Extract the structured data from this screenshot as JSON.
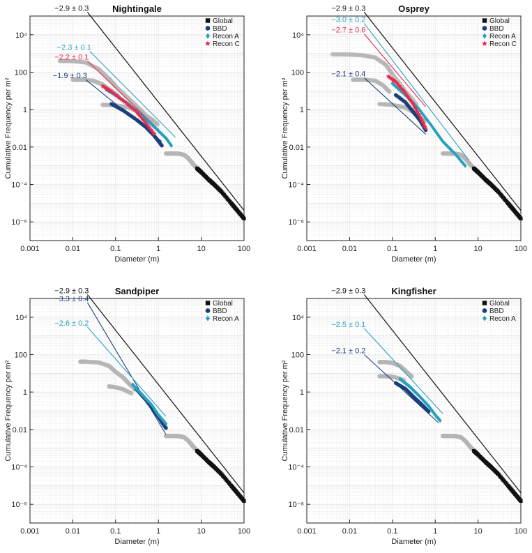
{
  "figure": {
    "xlabel": "Diameter (m)",
    "ylabel": "Cumulative Frequency per m²",
    "xticks": [
      "0.001",
      "0.01",
      "0.1",
      "1",
      "10",
      "100"
    ],
    "yticks": [
      "10⁻⁶",
      "10⁻⁴",
      "0.01",
      "1",
      "100",
      "10⁴"
    ]
  },
  "colors": {
    "Global": "#111111",
    "BBD": "#1a3f7a",
    "Recon A": "#2aa0bf",
    "Recon C": "#e8294d",
    "reference": "#b5b5b5"
  },
  "chart_data": [
    {
      "type": "scatter",
      "title": "Nightingale",
      "xlabel": "Diameter (m)",
      "ylabel": "Cumulative Frequency per m²",
      "xscale": "log",
      "yscale": "log",
      "xlim": [
        0.001,
        100
      ],
      "ylim": [
        1e-07,
        100000.0
      ],
      "legend": {
        "placement": "top-right",
        "entries": [
          "Global",
          "BBD",
          "Recon A",
          "Recon C"
        ]
      },
      "series": [
        {
          "name": "Global",
          "x": [
            8,
            10,
            15,
            20,
            30,
            50,
            70,
            100
          ],
          "y": [
            0.00072,
            0.00045,
            0.00018,
            0.0001,
            4e-05,
            1e-05,
            4e-06,
            1.5e-06
          ]
        },
        {
          "name": "BBD",
          "x": [
            0.08,
            0.15,
            0.3,
            0.5,
            0.8,
            1.2
          ],
          "y": [
            2,
            0.9,
            0.3,
            0.12,
            0.04,
            0.012
          ]
        },
        {
          "name": "Recon A",
          "x": [
            0.06,
            0.1,
            0.2,
            0.4,
            0.8,
            1.5,
            2
          ],
          "y": [
            12,
            6,
            2,
            0.5,
            0.12,
            0.03,
            0.012
          ]
        },
        {
          "name": "Recon C",
          "x": [
            0.05,
            0.08,
            0.15,
            0.3,
            0.5,
            0.8
          ],
          "y": [
            18,
            9,
            3,
            0.8,
            0.2,
            0.05
          ]
        }
      ],
      "reference_points": [
        {
          "x": [
            0.005,
            0.01,
            0.02,
            0.04,
            0.07,
            0.1,
            0.2,
            0.4,
            0.7
          ],
          "y": [
            400,
            390,
            330,
            150,
            45,
            18,
            4,
            0.9,
            0.2
          ]
        },
        {
          "x": [
            0.01,
            0.015,
            0.03,
            0.05,
            0.08,
            0.12
          ],
          "y": [
            40,
            40,
            35,
            22,
            10,
            5
          ]
        },
        {
          "x": [
            0.05,
            0.1,
            0.2,
            0.4,
            0.7,
            1.0
          ],
          "y": [
            1.8,
            1.7,
            1.3,
            0.7,
            0.3,
            0.15
          ]
        },
        {
          "x": [
            1.5,
            2,
            3,
            4,
            5,
            6,
            7,
            8
          ],
          "y": [
            0.0045,
            0.0045,
            0.0044,
            0.0038,
            0.0025,
            0.0015,
            0.001,
            0.00075
          ]
        }
      ],
      "fits": [
        {
          "name": "Global",
          "label": "−2.9 ± 0.3",
          "slope": -2.9,
          "x": [
            0.022,
            100
          ],
          "y": [
            160000,
            4.1e-06
          ]
        },
        {
          "name": "Recon A",
          "label": "−2.3 ± 0.1",
          "slope": -2.3,
          "x": [
            0.025,
            2.5
          ],
          "y": [
            1300,
            0.033
          ]
        },
        {
          "name": "Recon C",
          "label": "−2.2 ± 0.1",
          "slope": -2.2,
          "x": [
            0.022,
            1.0
          ],
          "y": [
            400,
            0.09
          ]
        },
        {
          "name": "BBD",
          "label": "−1.9 ± 0.3",
          "slope": -1.9,
          "x": [
            0.02,
            1.2
          ],
          "y": [
            40,
            0.02
          ]
        }
      ]
    },
    {
      "type": "scatter",
      "title": "Osprey",
      "xlabel": "Diameter (m)",
      "ylabel": "Cumulative Frequency per m²",
      "xscale": "log",
      "yscale": "log",
      "xlim": [
        0.001,
        100
      ],
      "ylim": [
        1e-07,
        100000.0
      ],
      "legend": {
        "placement": "top-right",
        "entries": [
          "Global",
          "BBD",
          "Recon A",
          "Recon C"
        ]
      },
      "series": [
        {
          "name": "Global",
          "x": [
            8,
            10,
            15,
            20,
            30,
            50,
            70,
            100
          ],
          "y": [
            0.00072,
            0.00045,
            0.00018,
            0.0001,
            4e-05,
            1e-05,
            4e-06,
            1.5e-06
          ]
        },
        {
          "name": "BBD",
          "x": [
            0.12,
            0.2,
            0.3,
            0.45,
            0.6
          ],
          "y": [
            6,
            2.5,
            0.8,
            0.25,
            0.08
          ]
        },
        {
          "name": "Recon A",
          "x": [
            0.1,
            0.2,
            0.4,
            0.8,
            1.5,
            3,
            5
          ],
          "y": [
            25,
            6,
            1.2,
            0.15,
            0.02,
            0.004,
            0.001
          ]
        },
        {
          "name": "Recon C",
          "x": [
            0.08,
            0.12,
            0.2,
            0.3,
            0.45,
            0.6
          ],
          "y": [
            60,
            30,
            8,
            2,
            0.4,
            0.1
          ]
        }
      ],
      "reference_points": [
        {
          "x": [
            0.004,
            0.01,
            0.02,
            0.04,
            0.07,
            0.1,
            0.2,
            0.4
          ],
          "y": [
            900,
            880,
            800,
            600,
            250,
            80,
            10,
            1.5
          ]
        },
        {
          "x": [
            0.012,
            0.02,
            0.04,
            0.06,
            0.09
          ],
          "y": [
            40,
            40,
            35,
            20,
            8
          ]
        },
        {
          "x": [
            0.05,
            0.1,
            0.2,
            0.35,
            0.6
          ],
          "y": [
            2,
            1.8,
            1.3,
            0.6,
            0.2
          ]
        },
        {
          "x": [
            1.5,
            2,
            3,
            4,
            5,
            6,
            7,
            8
          ],
          "y": [
            0.0045,
            0.0045,
            0.0044,
            0.0038,
            0.0025,
            0.0015,
            0.001,
            0.00075
          ]
        }
      ],
      "fits": [
        {
          "name": "Global",
          "label": "−2.9 ± 0.3",
          "slope": -2.9,
          "x": [
            0.022,
            100
          ],
          "y": [
            160000,
            4.1e-06
          ]
        },
        {
          "name": "Recon A",
          "label": "−3.0 ± 0.2",
          "slope": -3.0,
          "x": [
            0.022,
            6
          ],
          "y": [
            40000,
            0.0021
          ]
        },
        {
          "name": "Recon C",
          "label": "−2.7 ± 0.6",
          "slope": -2.7,
          "x": [
            0.022,
            0.6
          ],
          "y": [
            11000,
            1.4
          ]
        },
        {
          "name": "BBD",
          "label": "−2.1 ± 0.4",
          "slope": -2.1,
          "x": [
            0.022,
            0.6
          ],
          "y": [
            50,
            0.048
          ]
        }
      ]
    },
    {
      "type": "scatter",
      "title": "Sandpiper",
      "xlabel": "Diameter (m)",
      "ylabel": "Cumulative Frequency per m²",
      "xscale": "log",
      "yscale": "log",
      "xlim": [
        0.001,
        100
      ],
      "ylim": [
        1e-07,
        100000.0
      ],
      "legend": {
        "placement": "top-right",
        "entries": [
          "Global",
          "BBD",
          "Recon A"
        ]
      },
      "series": [
        {
          "name": "Global",
          "x": [
            8,
            10,
            15,
            20,
            30,
            50,
            70,
            100
          ],
          "y": [
            0.00072,
            0.00045,
            0.00018,
            0.0001,
            4e-05,
            1e-05,
            4e-06,
            1.5e-06
          ]
        },
        {
          "name": "BBD",
          "x": [
            0.3,
            0.5,
            0.8,
            1.2,
            1.5
          ],
          "y": [
            1.5,
            0.4,
            0.1,
            0.025,
            0.012
          ]
        },
        {
          "name": "Recon A",
          "x": [
            0.25,
            0.4,
            0.7,
            1.0,
            1.5
          ],
          "y": [
            2.5,
            0.8,
            0.2,
            0.06,
            0.02
          ]
        }
      ],
      "reference_points": [
        {
          "x": [
            0.015,
            0.02,
            0.04,
            0.07,
            0.1,
            0.15,
            0.2,
            0.3
          ],
          "y": [
            42,
            42,
            38,
            25,
            12,
            6,
            3,
            1.2
          ]
        },
        {
          "x": [
            0.07,
            0.1,
            0.15,
            0.25
          ],
          "y": [
            2,
            1.8,
            1.4,
            0.8
          ]
        },
        {
          "x": [
            1.5,
            2,
            3,
            4,
            5,
            6,
            7,
            8
          ],
          "y": [
            0.0045,
            0.0045,
            0.0044,
            0.0038,
            0.0025,
            0.0015,
            0.001,
            0.00075
          ]
        }
      ],
      "fits": [
        {
          "name": "Global",
          "label": "−2.9 ± 0.3",
          "slope": -2.9,
          "x": [
            0.022,
            100
          ],
          "y": [
            160000,
            4.1e-06
          ]
        },
        {
          "name": "BBD",
          "label": "−3.3 ± 0.4",
          "slope": -3.3,
          "x": [
            0.022,
            1.5
          ],
          "y": [
            60000,
            0.0054
          ]
        },
        {
          "name": "Recon A",
          "label": "−2.6 ± 0.2",
          "slope": -2.6,
          "x": [
            0.022,
            1.5
          ],
          "y": [
            3000,
            0.05
          ]
        }
      ]
    },
    {
      "type": "scatter",
      "title": "Kingfisher",
      "xlabel": "Diameter (m)",
      "ylabel": "Cumulative Frequency per m²",
      "xscale": "log",
      "yscale": "log",
      "xlim": [
        0.001,
        100
      ],
      "ylim": [
        1e-07,
        100000.0
      ],
      "legend": {
        "placement": "top-right",
        "entries": [
          "Global",
          "BBD",
          "Recon A"
        ]
      },
      "series": [
        {
          "name": "Global",
          "x": [
            8,
            10,
            15,
            20,
            30,
            50,
            70,
            100
          ],
          "y": [
            0.00072,
            0.00045,
            0.00018,
            0.0001,
            4e-05,
            1e-05,
            4e-06,
            1.5e-06
          ]
        },
        {
          "name": "BBD",
          "x": [
            0.12,
            0.2,
            0.3,
            0.5,
            0.7
          ],
          "y": [
            3,
            1.5,
            0.6,
            0.2,
            0.09
          ]
        },
        {
          "name": "Recon A",
          "x": [
            0.15,
            0.25,
            0.4,
            0.7,
            1.0,
            1.3
          ],
          "y": [
            5,
            2,
            0.7,
            0.18,
            0.06,
            0.03
          ]
        }
      ],
      "reference_points": [
        {
          "x": [
            0.05,
            0.07,
            0.1,
            0.15,
            0.2,
            0.3
          ],
          "y": [
            40,
            40,
            36,
            25,
            14,
            6
          ]
        },
        {
          "x": [
            0.05,
            0.08,
            0.12,
            0.2
          ],
          "y": [
            7,
            7,
            6,
            4
          ]
        },
        {
          "x": [
            1.5,
            2,
            3,
            4,
            5,
            6,
            7,
            8
          ],
          "y": [
            0.0045,
            0.0045,
            0.0044,
            0.0038,
            0.0025,
            0.0015,
            0.001,
            0.00075
          ]
        }
      ],
      "fits": [
        {
          "name": "Global",
          "label": "−2.9 ± 0.3",
          "slope": -2.9,
          "x": [
            0.022,
            100
          ],
          "y": [
            160000,
            4.1e-06
          ]
        },
        {
          "name": "Recon A",
          "label": "−2.5 ± 0.1",
          "slope": -2.5,
          "x": [
            0.022,
            1.5
          ],
          "y": [
            2500,
            0.07
          ]
        },
        {
          "name": "BBD",
          "label": "−2.1 ± 0.2",
          "slope": -2.1,
          "x": [
            0.022,
            1.2
          ],
          "y": [
            100,
            0.0225
          ]
        }
      ]
    }
  ]
}
